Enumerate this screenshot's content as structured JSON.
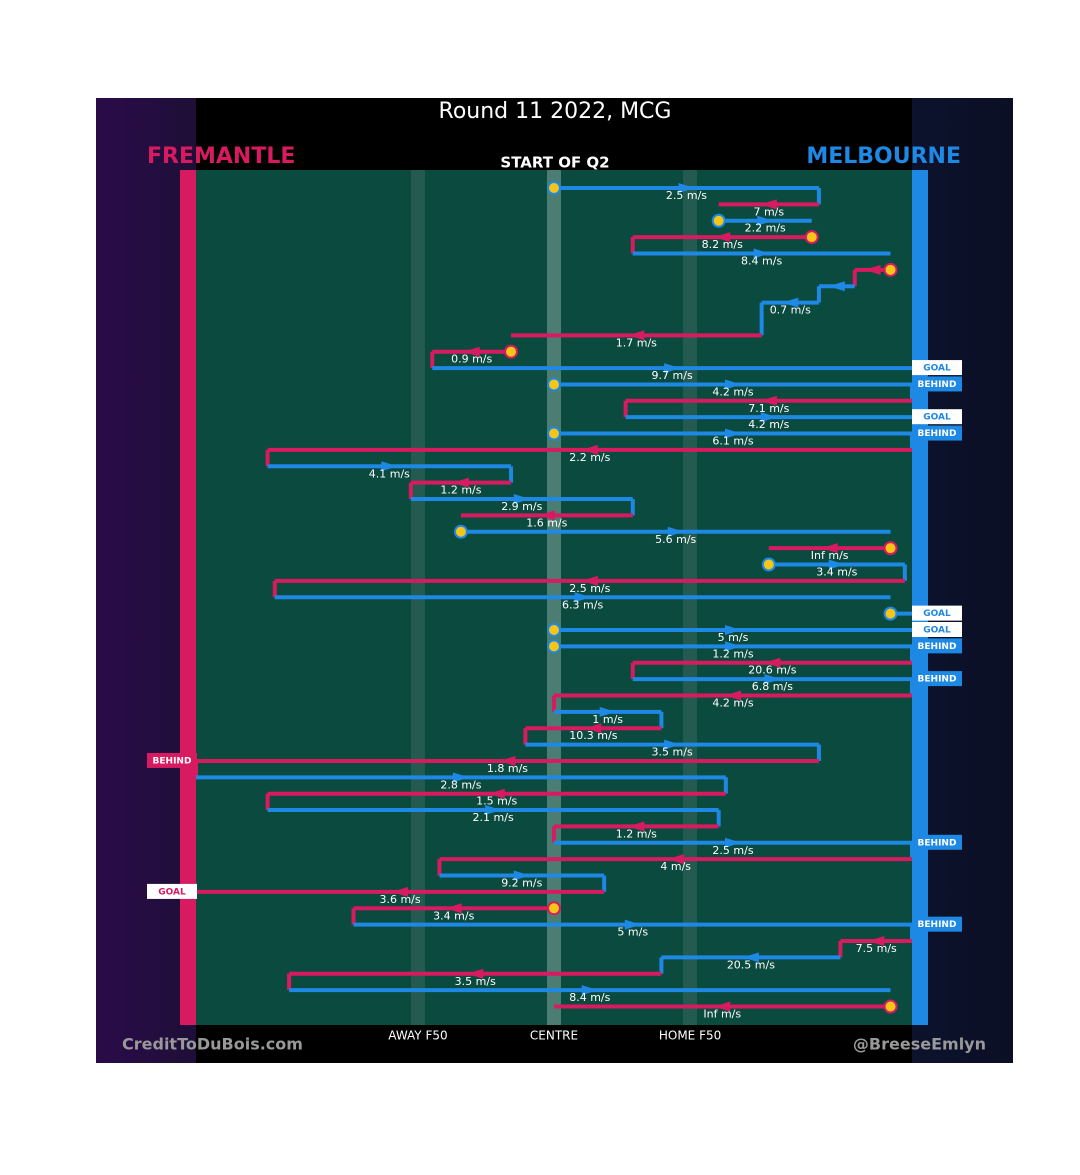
{
  "title": "Round 11 2022, MCG",
  "period": "START OF Q2",
  "teams": [
    {
      "name": "FREMANTLE",
      "color": "#d81b60"
    },
    {
      "name": "MELBOURNE",
      "color": "#1e88e5"
    }
  ],
  "field_marks": [
    {
      "label": "AWAY F50",
      "at": 31
    },
    {
      "label": "CENTRE",
      "at": 50
    },
    {
      "label": "HOME F50",
      "at": 69
    }
  ],
  "credits": {
    "left": "CreditToDuBois.com",
    "right": "@BreeseEmlyn"
  },
  "possessions": [
    {
      "team": 1,
      "from": 50,
      "to": 87,
      "speed": "2.5 m/s",
      "stoppage": true
    },
    {
      "team": 0,
      "from": 87,
      "to": 73,
      "speed": "7 m/s"
    },
    {
      "team": 1,
      "from": 73,
      "to": 86,
      "speed": "2.2 m/s",
      "stoppage": true
    },
    {
      "team": 0,
      "from": 86,
      "to": 61,
      "speed": "8.2 m/s",
      "stoppage": true
    },
    {
      "team": 1,
      "from": 61,
      "to": 97,
      "speed": "8.4 m/s"
    },
    {
      "team": 0,
      "from": 97,
      "to": 92,
      "stoppage": true
    },
    {
      "team": 1,
      "from": 92,
      "to": 87
    },
    {
      "team": 1,
      "from": 87,
      "to": 79,
      "speed": "0.7 m/s"
    },
    {
      "team": 1,
      "from": 79,
      "to": 79
    },
    {
      "team": 0,
      "from": 79,
      "to": 44,
      "speed": "1.7 m/s"
    },
    {
      "team": 0,
      "from": 44,
      "to": 33,
      "speed": "0.9 m/s",
      "stoppage": true
    },
    {
      "team": 1,
      "from": 33,
      "to": 100,
      "speed": "9.7 m/s",
      "result": "GOAL"
    },
    {
      "team": 1,
      "from": 50,
      "to": 100,
      "speed": "4.2 m/s",
      "stoppage": true,
      "result": "BEHIND"
    },
    {
      "team": 0,
      "from": 100,
      "to": 60,
      "speed": "7.1 m/s"
    },
    {
      "team": 1,
      "from": 60,
      "to": 100,
      "speed": "4.2 m/s",
      "result": "GOAL"
    },
    {
      "team": 1,
      "from": 50,
      "to": 100,
      "speed": "6.1 m/s",
      "stoppage": true,
      "result": "BEHIND"
    },
    {
      "team": 0,
      "from": 100,
      "to": 10,
      "speed": "2.2 m/s"
    },
    {
      "team": 1,
      "from": 10,
      "to": 44,
      "speed": "4.1 m/s"
    },
    {
      "team": 0,
      "from": 44,
      "to": 30,
      "speed": "1.2 m/s"
    },
    {
      "team": 1,
      "from": 30,
      "to": 61,
      "speed": "2.9 m/s"
    },
    {
      "team": 0,
      "from": 61,
      "to": 37,
      "speed": "1.6 m/s"
    },
    {
      "team": 1,
      "from": 37,
      "to": 97,
      "speed": "5.6 m/s",
      "stoppage": true
    },
    {
      "team": 0,
      "from": 97,
      "to": 80,
      "speed": "Inf m/s",
      "stoppage": true
    },
    {
      "team": 1,
      "from": 80,
      "to": 99,
      "speed": "3.4 m/s",
      "stoppage": true
    },
    {
      "team": 0,
      "from": 99,
      "to": 11,
      "speed": "2.5 m/s"
    },
    {
      "team": 1,
      "from": 11,
      "to": 97,
      "speed": "6.3 m/s"
    },
    {
      "team": 1,
      "from": 97,
      "to": 100,
      "stoppage": true,
      "result": "GOAL"
    },
    {
      "team": 1,
      "from": 50,
      "to": 100,
      "speed": "5 m/s",
      "stoppage": true,
      "result": "GOAL"
    },
    {
      "team": 1,
      "from": 50,
      "to": 100,
      "speed": "1.2 m/s",
      "stoppage": true,
      "result": "BEHIND"
    },
    {
      "team": 0,
      "from": 100,
      "to": 61,
      "speed": "20.6 m/s"
    },
    {
      "team": 1,
      "from": 61,
      "to": 100,
      "speed": "6.8 m/s",
      "result": "BEHIND"
    },
    {
      "team": 0,
      "from": 100,
      "to": 50,
      "speed": "4.2 m/s"
    },
    {
      "team": 1,
      "from": 50,
      "to": 65,
      "speed": "1 m/s"
    },
    {
      "team": 0,
      "from": 65,
      "to": 46,
      "speed": "10.3 m/s"
    },
    {
      "team": 1,
      "from": 46,
      "to": 87,
      "speed": "3.5 m/s"
    },
    {
      "team": 0,
      "from": 87,
      "to": 0,
      "speed": "1.8 m/s",
      "result": "BEHIND"
    },
    {
      "team": 1,
      "from": 0,
      "to": 74,
      "speed": "2.8 m/s"
    },
    {
      "team": 0,
      "from": 74,
      "to": 10,
      "speed": "1.5 m/s"
    },
    {
      "team": 1,
      "from": 10,
      "to": 73,
      "speed": "2.1 m/s"
    },
    {
      "team": 0,
      "from": 73,
      "to": 50,
      "speed": "1.2 m/s"
    },
    {
      "team": 1,
      "from": 50,
      "to": 100,
      "speed": "2.5 m/s",
      "result": "BEHIND"
    },
    {
      "team": 0,
      "from": 100,
      "to": 34,
      "speed": "4 m/s"
    },
    {
      "team": 1,
      "from": 34,
      "to": 57,
      "speed": "9.2 m/s"
    },
    {
      "team": 0,
      "from": 57,
      "to": 0,
      "speed": "3.6 m/s",
      "result": "GOAL"
    },
    {
      "team": 0,
      "from": 50,
      "to": 22,
      "speed": "3.4 m/s",
      "stoppage": true
    },
    {
      "team": 1,
      "from": 22,
      "to": 100,
      "speed": "5 m/s",
      "result": "BEHIND"
    },
    {
      "team": 0,
      "from": 100,
      "to": 90,
      "speed": "7.5 m/s"
    },
    {
      "team": 1,
      "from": 90,
      "to": 65,
      "speed": "20.5 m/s"
    },
    {
      "team": 0,
      "from": 65,
      "to": 13,
      "speed": "3.5 m/s"
    },
    {
      "team": 1,
      "from": 13,
      "to": 97,
      "speed": "8.4 m/s"
    },
    {
      "team": 0,
      "from": 97,
      "to": 50,
      "speed": "Inf m/s",
      "stoppage": true
    }
  ]
}
